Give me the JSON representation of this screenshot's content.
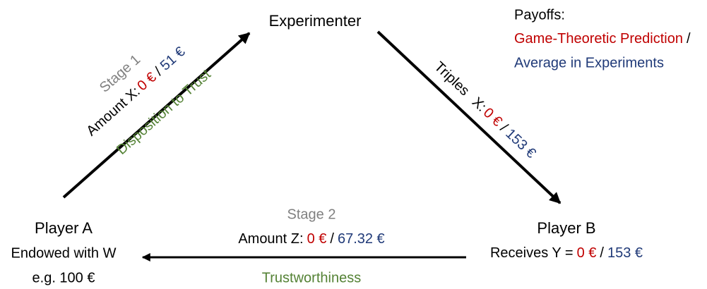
{
  "experimenter": "Experimenter",
  "legend": {
    "title": "Payoffs:",
    "prediction": "Game-Theoretic Prediction",
    "separator": "/",
    "average": "Average in Experiments"
  },
  "player_a": {
    "name": "Player A",
    "line1": "Endowed with W",
    "line2": "e.g. 100 €"
  },
  "player_b": {
    "name": "Player B",
    "label": "Receives Y =",
    "prediction": "0 €",
    "separator": "/",
    "average": "153 €"
  },
  "stage1": {
    "stage": "Stage 1",
    "label": "Amount X:",
    "prediction": "0 €",
    "separator": "/",
    "average": "51 €",
    "meaning": "Disposition to Trust"
  },
  "triples": {
    "label": "Triples",
    "variable": "X:",
    "prediction": "0 €",
    "separator": "/",
    "average": "153 €"
  },
  "stage2": {
    "stage": "Stage 2",
    "label": "Amount Z:",
    "prediction": "0 €",
    "separator": "/",
    "average": "67.32 €",
    "meaning": "Trustworthiness"
  }
}
